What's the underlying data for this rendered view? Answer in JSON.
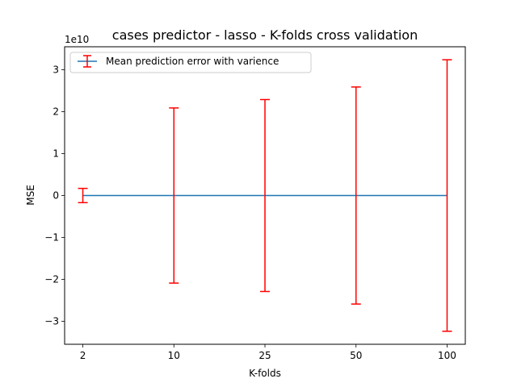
{
  "chart_data": {
    "type": "line",
    "title": "cases predictor - lasso - K-folds cross validation",
    "xlabel": "K-folds",
    "ylabel": "MSE",
    "y_offset_label": "1e10",
    "y_scale_factor": 10000000000,
    "categories": [
      "2",
      "10",
      "25",
      "50",
      "100"
    ],
    "series": [
      {
        "name": "Mean prediction error with varience",
        "values": [
          0,
          0,
          0,
          0,
          0
        ],
        "errors": [
          1700000000.0,
          20900000000.0,
          22900000000.0,
          25900000000.0,
          32400000000.0
        ]
      }
    ],
    "y_ticks": [
      -3,
      -2,
      -1,
      0,
      1,
      2,
      3
    ],
    "ylim": [
      -35500000000.0,
      35500000000.0
    ],
    "grid": false,
    "legend_position": "upper-left",
    "colors": {
      "line": "#1f77b4",
      "errorbar": "#ff0000"
    }
  }
}
